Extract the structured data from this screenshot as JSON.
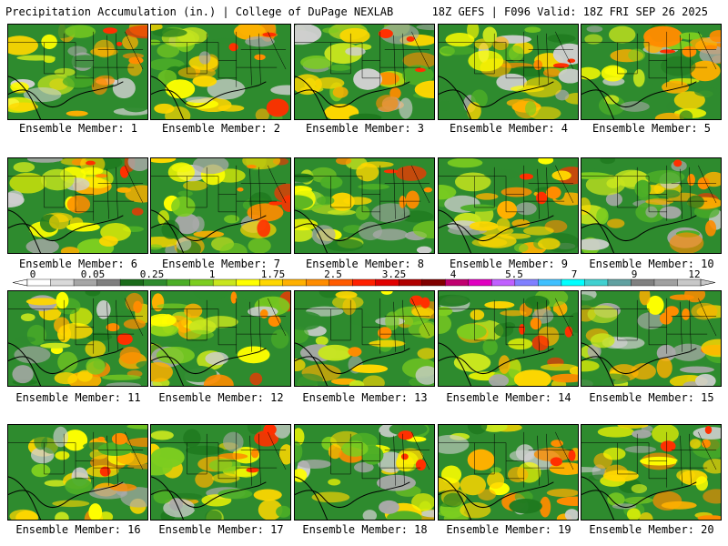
{
  "header": {
    "title_left": "Precipitation Accumulation (in.) | College of DuPage NEXLAB",
    "title_right": "18Z GEFS | F096 Valid: 18Z FRI SEP 26 2025"
  },
  "legend": {
    "tick_labels": [
      "0",
      "0.05",
      "0.25",
      "1",
      "1.75",
      "2.5",
      "3.25",
      "4",
      "5.5",
      "7",
      "9",
      "12"
    ],
    "colors": [
      "#ffffff",
      "#d9d9d9",
      "#a6a6a6",
      "#7f7f7f",
      "#1a6b1a",
      "#2e8b2e",
      "#4cae27",
      "#7ccd20",
      "#c8e61e",
      "#ffff00",
      "#ffd700",
      "#ffb000",
      "#ff8c00",
      "#ff5a00",
      "#ff2000",
      "#e00000",
      "#b00000",
      "#800000",
      "#c00070",
      "#e000c0",
      "#c060ff",
      "#8080ff",
      "#40c0ff",
      "#00ffff",
      "#40d0d0",
      "#60a0a0",
      "#808080",
      "#a0a0a0",
      "#c8c8c8"
    ]
  },
  "members": [
    {
      "label": "Ensemble Member: 1"
    },
    {
      "label": "Ensemble Member: 2"
    },
    {
      "label": "Ensemble Member: 3"
    },
    {
      "label": "Ensemble Member: 4"
    },
    {
      "label": "Ensemble Member: 5"
    },
    {
      "label": "Ensemble Member: 6"
    },
    {
      "label": "Ensemble Member: 7"
    },
    {
      "label": "Ensemble Member: 8"
    },
    {
      "label": "Ensemble Member: 9"
    },
    {
      "label": "Ensemble Member: 10"
    },
    {
      "label": "Ensemble Member: 11"
    },
    {
      "label": "Ensemble Member: 12"
    },
    {
      "label": "Ensemble Member: 13"
    },
    {
      "label": "Ensemble Member: 14"
    },
    {
      "label": "Ensemble Member: 15"
    },
    {
      "label": "Ensemble Member: 16"
    },
    {
      "label": "Ensemble Member: 17"
    },
    {
      "label": "Ensemble Member: 18"
    },
    {
      "label": "Ensemble Member: 19"
    },
    {
      "label": "Ensemble Member: 20"
    }
  ]
}
